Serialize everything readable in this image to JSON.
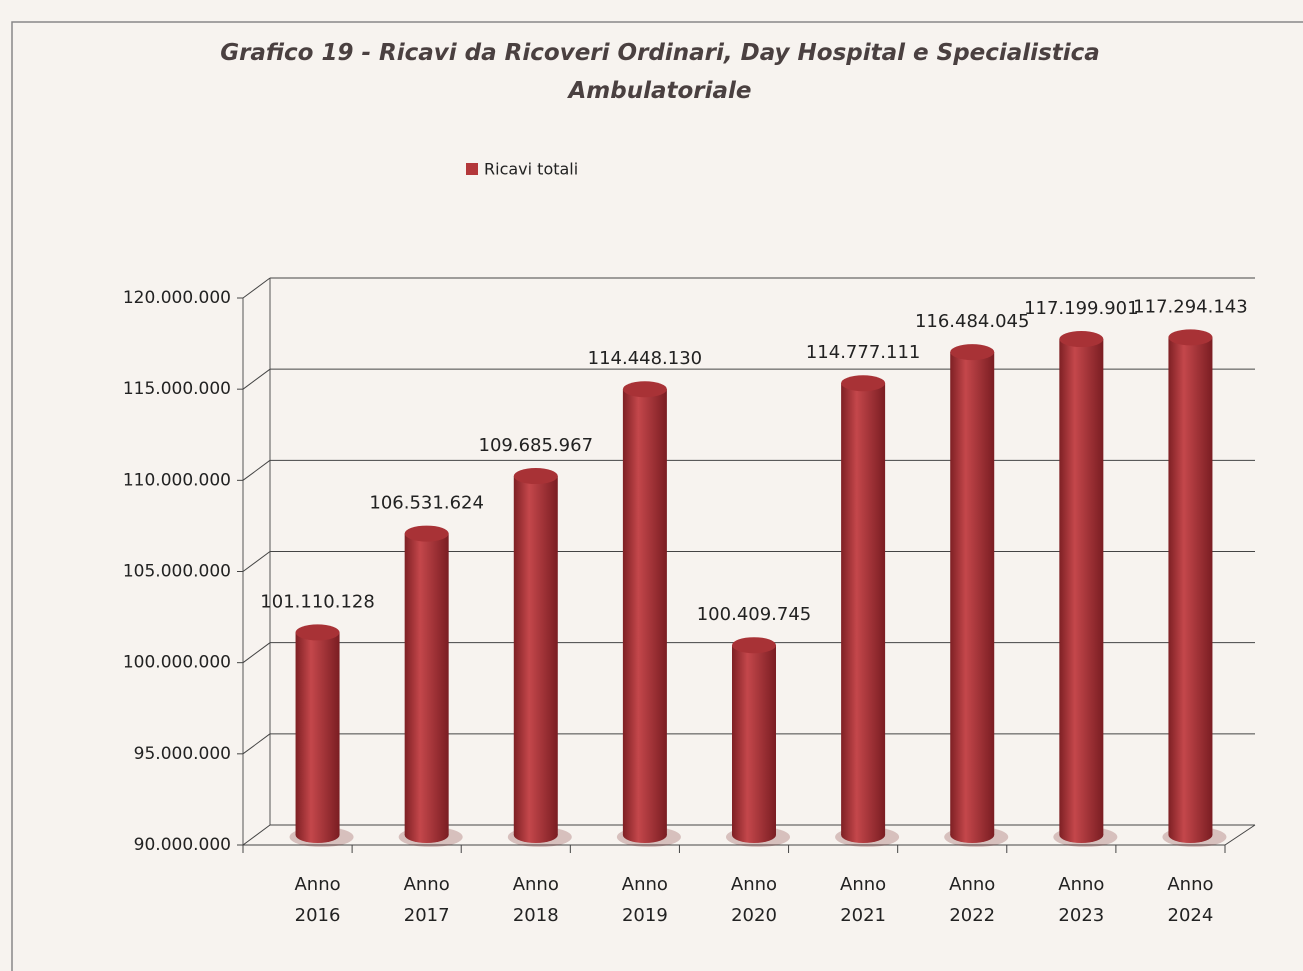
{
  "chart_data": {
    "type": "bar",
    "title": "Grafico 19 - Ricavi da Ricoveri Ordinari, Day Hospital e Specialistica Ambulatoriale",
    "categories": [
      "Anno 2016",
      "Anno 2017",
      "Anno 2018",
      "Anno 2019",
      "Anno 2020",
      "Anno 2021",
      "Anno 2022",
      "Anno 2023",
      "Anno 2024"
    ],
    "series": [
      {
        "name": "Ricavi totali",
        "color": "#b3373a",
        "values": [
          101110128,
          106531624,
          109685967,
          114448130,
          100409745,
          114777111,
          116484045,
          117199901,
          117294143
        ],
        "value_labels": [
          "101.110.128",
          "106.531.624",
          "109.685.967",
          "114.448.130",
          "100.409.745",
          "114.777.111",
          "116.484.045",
          "117.199.901",
          "117.294.143"
        ]
      }
    ],
    "ylim": [
      90000000,
      120000000
    ],
    "yticks": [
      {
        "value": 90000000,
        "label": "90.000.000"
      },
      {
        "value": 95000000,
        "label": "95.000.000"
      },
      {
        "value": 100000000,
        "label": "100.000.000"
      },
      {
        "value": 105000000,
        "label": "105.000.000"
      },
      {
        "value": 110000000,
        "label": "110.000.000"
      },
      {
        "value": 115000000,
        "label": "115.000.000"
      },
      {
        "value": 120000000,
        "label": "120.000.000"
      }
    ],
    "grid": true,
    "legend": "top"
  }
}
